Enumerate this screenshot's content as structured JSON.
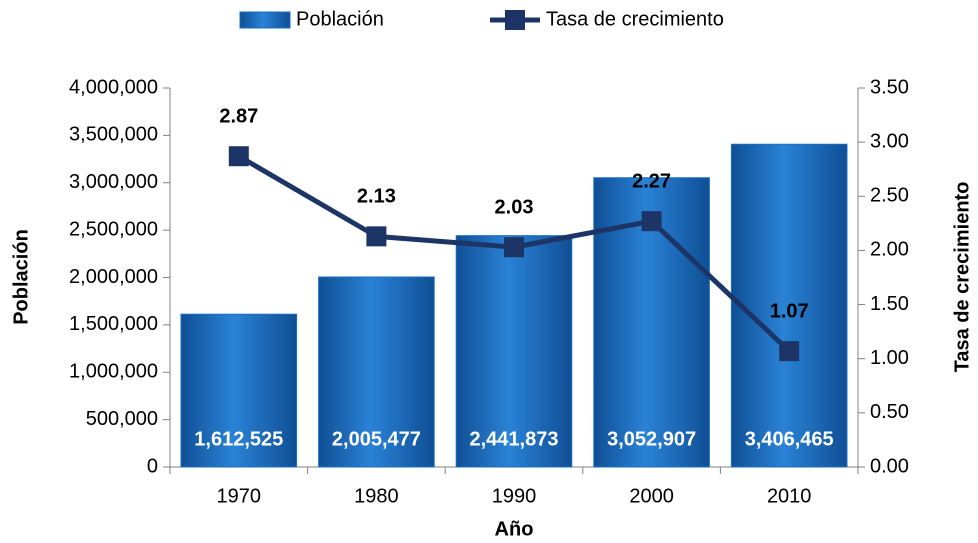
{
  "chart_data": {
    "type": "bar",
    "legend_position": "top",
    "categories": [
      "1970",
      "1980",
      "1990",
      "2000",
      "2010"
    ],
    "x_label": "Año",
    "y_label": "Población",
    "y2_label": "Tasa de crecimiento",
    "ylim": [
      0,
      4000000
    ],
    "yticks": [
      0,
      {
        "value": 500000,
        "label": "500,000"
      },
      {
        "value": 1000000,
        "label": "1,000,000"
      },
      {
        "value": 1500000,
        "label": "1,500,000"
      },
      {
        "value": 2000000,
        "label": "2,000,000"
      },
      {
        "value": 2500000,
        "label": "2,500,000"
      },
      {
        "value": 3000000,
        "label": "3,000,000"
      },
      {
        "value": 3500000,
        "label": "3,500,000"
      },
      {
        "value": 4000000,
        "label": "4,000,000"
      }
    ],
    "y2lim": [
      0,
      3.5
    ],
    "y2ticks": [
      {
        "value": 0,
        "label": "0.00"
      },
      {
        "value": 0.5,
        "label": "0.50"
      },
      {
        "value": 1,
        "label": "1.00"
      },
      {
        "value": 1.5,
        "label": "1.50"
      },
      {
        "value": 2,
        "label": "2.00"
      },
      {
        "value": 2.5,
        "label": "2.50"
      },
      {
        "value": 3,
        "label": "3.00"
      },
      {
        "value": 3.5,
        "label": "3.50"
      }
    ],
    "series": [
      {
        "name": "Población",
        "type": "bar",
        "color": "#1a6fc4",
        "values": [
          1612525,
          2005477,
          2441873,
          3052907,
          3406465
        ],
        "value_labels": [
          "1,612,525",
          "2,005,477",
          "2,441,873",
          "3,052,907",
          "3,406,465"
        ]
      },
      {
        "name": "Tasa de crecimiento",
        "type": "line",
        "axis": "y2",
        "color": "#1c3566",
        "values": [
          2.87,
          2.13,
          2.03,
          2.27,
          1.07
        ]
      }
    ]
  }
}
